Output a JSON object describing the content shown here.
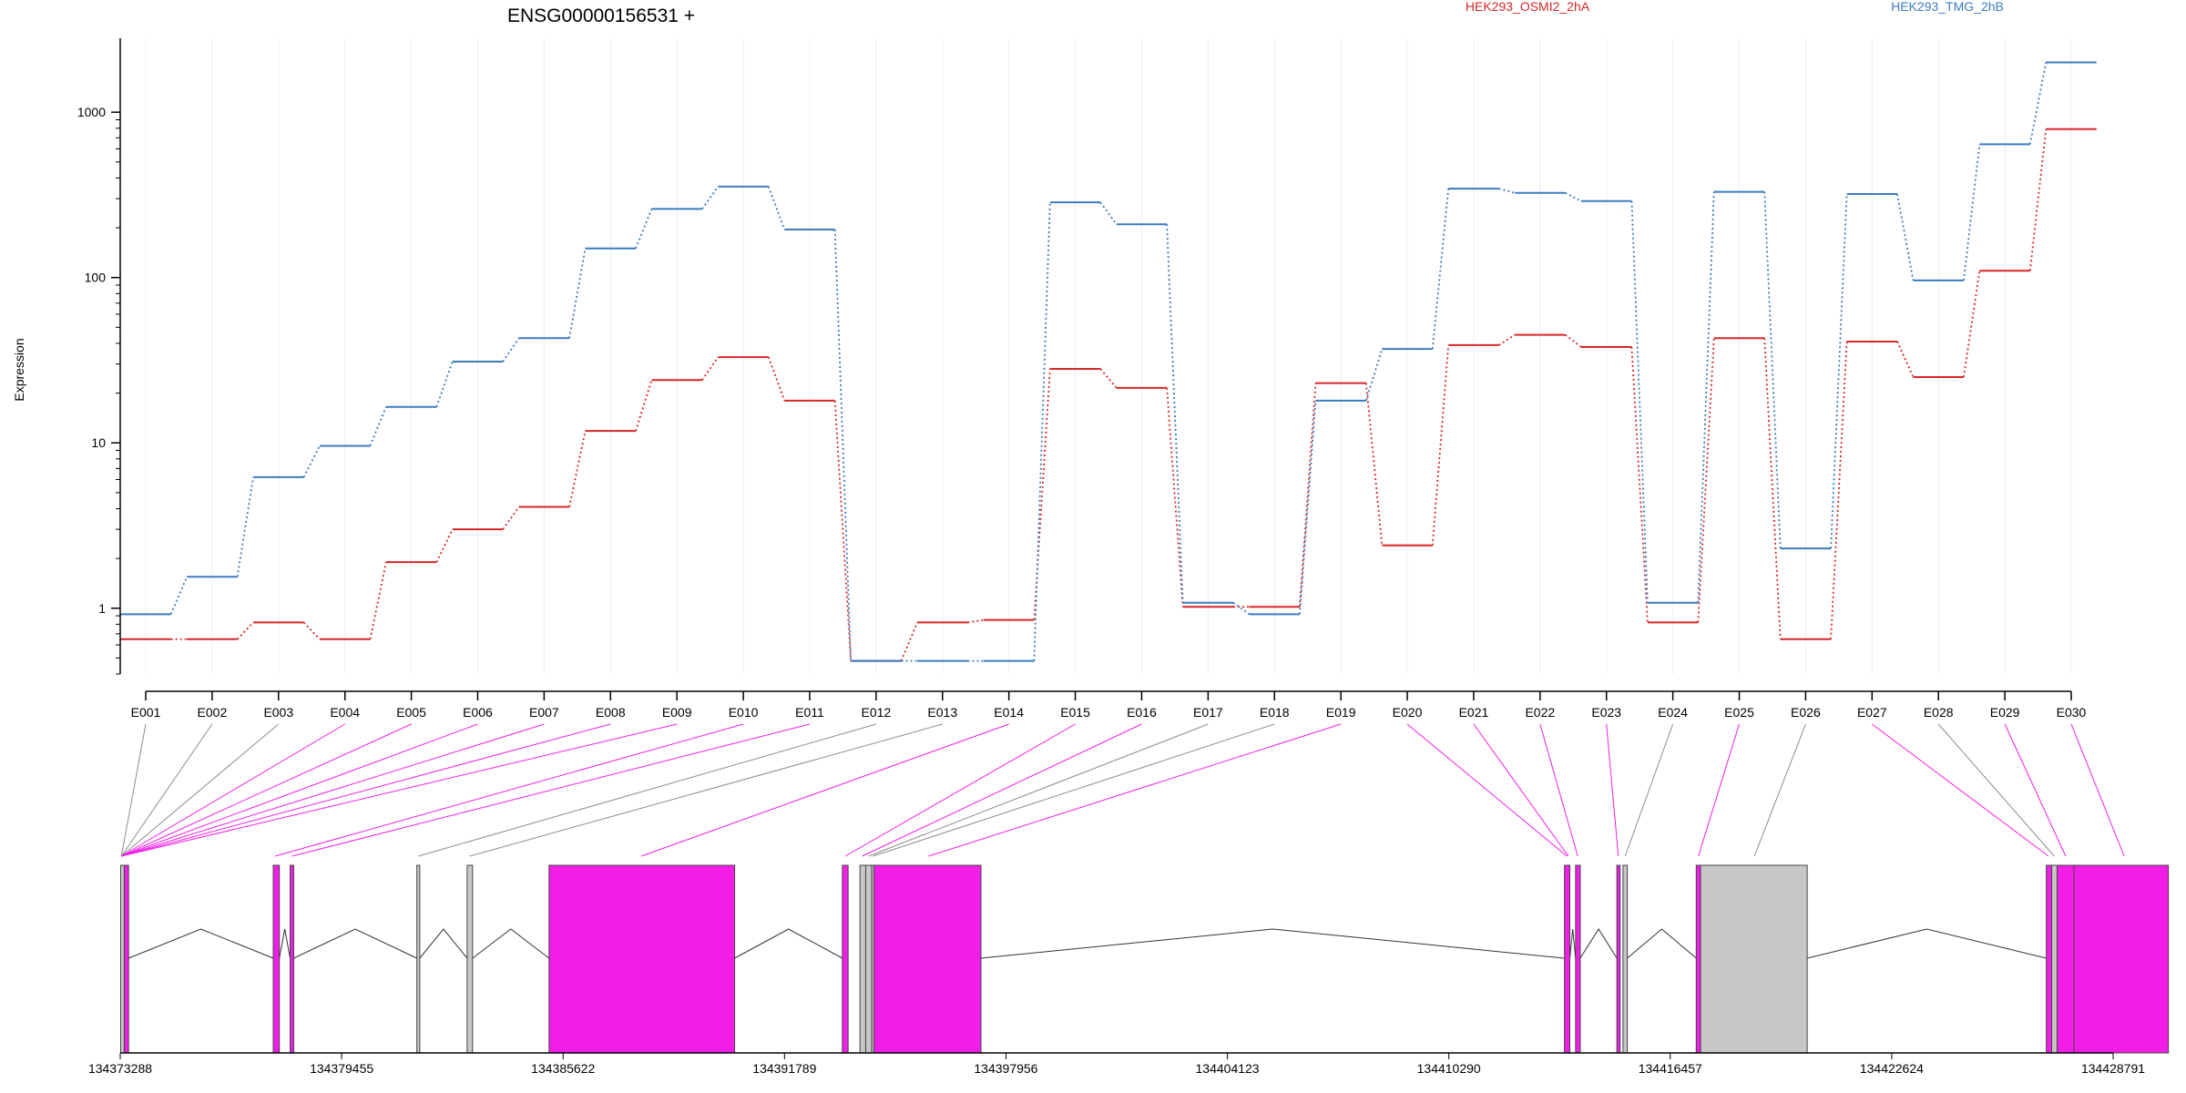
{
  "title": "ENSG00000156531 +",
  "colors": {
    "series_red": "#d62728",
    "series_blue": "#3b7bbf",
    "exon_highlight": "#f01ee6",
    "exon_other": "#c8c8c8",
    "exon_outline": "#444444",
    "axis": "#000000",
    "vgrid": "#ececf4",
    "connector_gray": "#8c8c8c"
  },
  "chart_data": {
    "type": "line",
    "title": "ENSG00000156531 +",
    "ylabel": "Expression",
    "xlabel": "",
    "y_scale": "log",
    "ylim": [
      0.4,
      2800
    ],
    "y_ticks": [
      1,
      10,
      100,
      1000
    ],
    "y_tick_labels": [
      "1",
      "10",
      "100",
      "1000"
    ],
    "grid": "vertical lines at exon positions",
    "legend_position": "top",
    "categories": [
      "E001",
      "E002",
      "E003",
      "E004",
      "E005",
      "E006",
      "E007",
      "E008",
      "E009",
      "E010",
      "E011",
      "E012",
      "E013",
      "E014",
      "E015",
      "E016",
      "E017",
      "E018",
      "E019",
      "E020",
      "E021",
      "E022",
      "E023",
      "E024",
      "E025",
      "E026",
      "E027",
      "E028",
      "E029",
      "E030"
    ],
    "series": [
      {
        "name": "HEK293_OSMI2_2hA",
        "color": "#d62728",
        "values": [
          0.65,
          0.65,
          0.82,
          0.65,
          1.9,
          3.0,
          4.1,
          11.8,
          24,
          33,
          18,
          0.48,
          0.82,
          0.85,
          28,
          21.5,
          1.02,
          1.02,
          23,
          2.4,
          39,
          45,
          38,
          0.82,
          43,
          0.65,
          41,
          25,
          110,
          790
        ]
      },
      {
        "name": "HEK293_TMG_2hB",
        "color": "#3b7bbf",
        "values": [
          0.92,
          1.55,
          6.2,
          9.6,
          16.5,
          31,
          43,
          150,
          260,
          355,
          195,
          0.48,
          0.48,
          0.48,
          285,
          210,
          1.08,
          0.92,
          18,
          37,
          345,
          325,
          290,
          1.08,
          330,
          2.3,
          320,
          96,
          640,
          2000
        ]
      }
    ],
    "gene_axis": {
      "ticks": [
        "134373288",
        "134379455",
        "134385622",
        "134391789",
        "134397956",
        "134404123",
        "134410290",
        "134416457",
        "134422624",
        "134428791"
      ]
    },
    "exons": [
      {
        "id": "E001",
        "start": 134373300,
        "end": 134373400,
        "highlighted": false
      },
      {
        "id": "E002",
        "start": 134373400,
        "end": 134373520,
        "highlighted": true
      },
      {
        "id": "E003",
        "start": 134377550,
        "end": 134377720,
        "highlighted": true
      },
      {
        "id": "E004",
        "start": 134378020,
        "end": 134378120,
        "highlighted": true
      },
      {
        "id": "E005",
        "start": 134381550,
        "end": 134381630,
        "highlighted": false
      },
      {
        "id": "E006",
        "start": 134382950,
        "end": 134383100,
        "highlighted": false
      },
      {
        "id": "E007",
        "start": 134385230,
        "end": 134390400,
        "highlighted": true
      },
      {
        "id": "E008",
        "start": 134393400,
        "end": 134393560,
        "highlighted": true
      },
      {
        "id": "E009",
        "start": 134393890,
        "end": 134394050,
        "highlighted": false
      },
      {
        "id": "E010",
        "start": 134394050,
        "end": 134394220,
        "highlighted": false
      },
      {
        "id": "E011",
        "start": 134394220,
        "end": 134394280,
        "highlighted": false
      },
      {
        "id": "E012",
        "start": 134394280,
        "end": 134397260,
        "highlighted": true
      },
      {
        "id": "E013",
        "start": 134413510,
        "end": 134413660,
        "highlighted": true
      },
      {
        "id": "E014",
        "start": 134413820,
        "end": 134413950,
        "highlighted": true
      },
      {
        "id": "E015",
        "start": 134414970,
        "end": 134415060,
        "highlighted": true
      },
      {
        "id": "E016",
        "start": 134415140,
        "end": 134415260,
        "highlighted": false
      },
      {
        "id": "E017",
        "start": 134417180,
        "end": 134417300,
        "highlighted": true
      },
      {
        "id": "E018",
        "start": 134417300,
        "end": 134420270,
        "highlighted": false
      },
      {
        "id": "E019",
        "start": 134426930,
        "end": 134427080,
        "highlighted": true
      },
      {
        "id": "E020",
        "start": 134427080,
        "end": 134427230,
        "highlighted": false
      },
      {
        "id": "E021",
        "start": 134427230,
        "end": 134427700,
        "highlighted": true
      },
      {
        "id": "E022",
        "start": 134427700,
        "end": 134430330,
        "highlighted": true
      }
    ],
    "introns": [
      [
        134373520,
        134377550
      ],
      [
        134377720,
        134378020
      ],
      [
        134378120,
        134381550
      ],
      [
        134381630,
        134382950
      ],
      [
        134383100,
        134385230
      ],
      [
        134390400,
        134393400
      ],
      [
        134397260,
        134413510
      ],
      [
        134413660,
        134413820
      ],
      [
        134413950,
        134414970
      ],
      [
        134415260,
        134417180
      ],
      [
        134420270,
        134426930
      ]
    ],
    "exon_links": [
      {
        "label": "E001",
        "target": 134373320,
        "highlighted": false
      },
      {
        "label": "E002",
        "target": 134373320,
        "highlighted": false
      },
      {
        "label": "E003",
        "target": 134373320,
        "highlighted": false
      },
      {
        "label": "E004",
        "target": 134373320,
        "highlighted": true
      },
      {
        "label": "E005",
        "target": 134373320,
        "highlighted": true
      },
      {
        "label": "E006",
        "target": 134373320,
        "highlighted": true
      },
      {
        "label": "E007",
        "target": 134373320,
        "highlighted": true
      },
      {
        "label": "E008",
        "target": 134373320,
        "highlighted": true
      },
      {
        "label": "E009",
        "target": 134373320,
        "highlighted": true
      },
      {
        "label": "E010",
        "target": 134377600,
        "highlighted": true
      },
      {
        "label": "E011",
        "target": 134378070,
        "highlighted": true
      },
      {
        "label": "E012",
        "target": 134381590,
        "highlighted": false
      },
      {
        "label": "E013",
        "target": 134383020,
        "highlighted": false
      },
      {
        "label": "E014",
        "target": 134387800,
        "highlighted": true
      },
      {
        "label": "E015",
        "target": 134393480,
        "highlighted": true
      },
      {
        "label": "E016",
        "target": 134393950,
        "highlighted": true
      },
      {
        "label": "E017",
        "target": 134394130,
        "highlighted": false
      },
      {
        "label": "E018",
        "target": 134394250,
        "highlighted": false
      },
      {
        "label": "E019",
        "target": 134395800,
        "highlighted": true
      },
      {
        "label": "E020",
        "target": 134413580,
        "highlighted": true
      },
      {
        "label": "E021",
        "target": 134413620,
        "highlighted": true
      },
      {
        "label": "E022",
        "target": 134413880,
        "highlighted": true
      },
      {
        "label": "E023",
        "target": 134415010,
        "highlighted": true
      },
      {
        "label": "E024",
        "target": 134415200,
        "highlighted": false
      },
      {
        "label": "E025",
        "target": 134417240,
        "highlighted": true
      },
      {
        "label": "E026",
        "target": 134418800,
        "highlighted": false
      },
      {
        "label": "E027",
        "target": 134426990,
        "highlighted": true
      },
      {
        "label": "E028",
        "target": 134427150,
        "highlighted": false
      },
      {
        "label": "E029",
        "target": 134427470,
        "highlighted": true
      },
      {
        "label": "E030",
        "target": 134429100,
        "highlighted": true
      }
    ]
  }
}
